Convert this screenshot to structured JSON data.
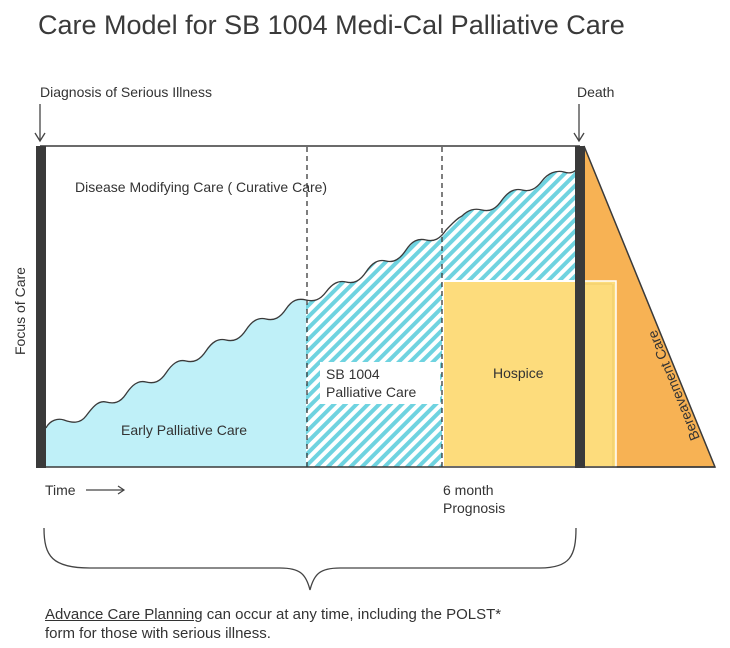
{
  "title": "Care Model for SB 1004 Medi-Cal Palliative Care",
  "labels": {
    "diagnosis": "Diagnosis of Serious Illness",
    "death": "Death",
    "y_axis": "Focus of Care",
    "disease_modifying": "Disease Modifying Care ( Curative Care)",
    "early_palliative": "Early Palliative Care",
    "sb1004_line1": "SB 1004",
    "sb1004_line2": "Palliative Care",
    "hospice": "Hospice",
    "bereavement": "Bereavement Care",
    "time": "Time",
    "prognosis_line1": "6 month",
    "prognosis_line2": "Prognosis"
  },
  "note": {
    "link": "Advance Care Planning",
    "rest1": " can occur at any time, including the POLST*",
    "rest2": "form for those with serious illness."
  },
  "colors": {
    "early": "#bff0f8",
    "hatch": "#6fd3e0",
    "hospice": "#fddc7c",
    "bereavement": "#f7b254",
    "bar": "#3a3a3a"
  }
}
